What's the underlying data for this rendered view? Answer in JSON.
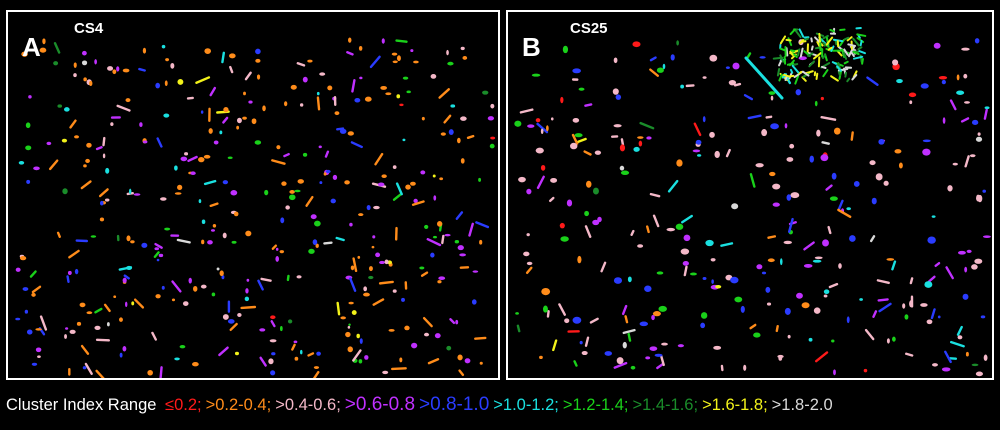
{
  "panels": [
    {
      "letter": "A",
      "label": "CS4"
    },
    {
      "letter": "B",
      "label": "CS25"
    }
  ],
  "legend": {
    "title": "Cluster Index Range",
    "items": [
      {
        "text": "≤0.2;",
        "color": "#ff1a1a"
      },
      {
        "text": ">0.2-0.4;",
        "color": "#ff8c1a"
      },
      {
        "text": ">0.4-0.6;",
        "color": "#f4b8c8"
      },
      {
        "text": ">0.6-0.8",
        "color": "#c030ff"
      },
      {
        "text": ">0.8-1.0",
        "color": "#2a3cff"
      },
      {
        "text": ">1.0-1.2;",
        "color": "#1ae0e0"
      },
      {
        "text": ">1.2-1.4;",
        "color": "#1ad11a"
      },
      {
        "text": ">1.4-1.6;",
        "color": "#1a8c2a"
      },
      {
        "text": ">1.6-1.8;",
        "color": "#f2f21a"
      },
      {
        "text": ">1.8-2.0",
        "color": "#d9d9d9"
      }
    ]
  }
}
